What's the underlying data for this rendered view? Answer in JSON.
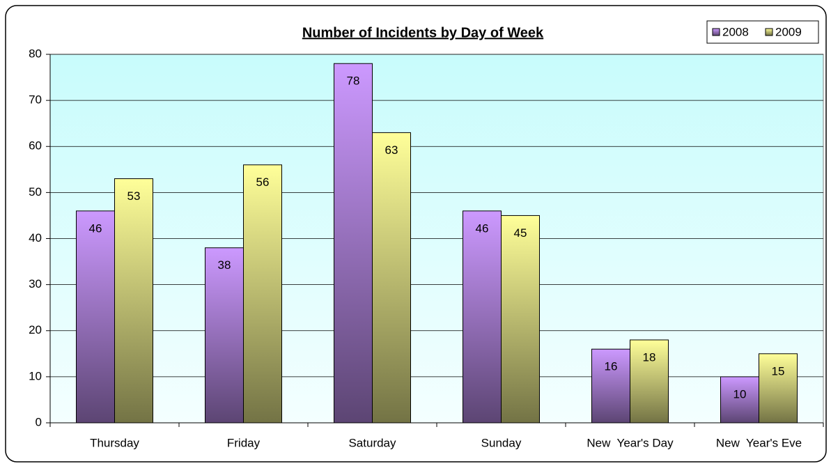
{
  "chart_data": {
    "type": "bar",
    "title": "Number of Incidents by Day of Week",
    "categories": [
      "Thursday",
      "Friday",
      "Saturday",
      "Sunday",
      "New  Year's Day",
      "New  Year's Eve"
    ],
    "series": [
      {
        "name": "2008",
        "color": "#cc99ff",
        "values": [
          46,
          38,
          78,
          46,
          16,
          10
        ]
      },
      {
        "name": "2009",
        "color": "#ffff99",
        "values": [
          53,
          56,
          63,
          45,
          18,
          15
        ]
      }
    ],
    "ylim": [
      0,
      80
    ],
    "yticks": [
      0,
      10,
      20,
      30,
      40,
      50,
      60,
      70,
      80
    ],
    "grid": true,
    "legend": "upper right"
  }
}
